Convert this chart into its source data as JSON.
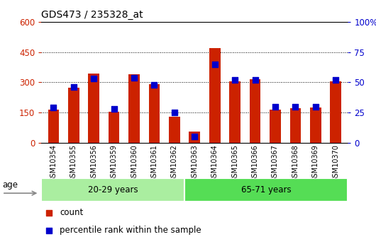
{
  "title": "GDS473 / 235328_at",
  "samples": [
    "GSM10354",
    "GSM10355",
    "GSM10356",
    "GSM10359",
    "GSM10360",
    "GSM10361",
    "GSM10362",
    "GSM10363",
    "GSM10364",
    "GSM10365",
    "GSM10366",
    "GSM10367",
    "GSM10368",
    "GSM10369",
    "GSM10370"
  ],
  "counts": [
    165,
    275,
    345,
    155,
    340,
    290,
    130,
    55,
    470,
    305,
    315,
    165,
    170,
    175,
    305
  ],
  "percentiles": [
    29,
    46,
    53,
    28,
    54,
    48,
    25,
    5,
    65,
    52,
    52,
    30,
    30,
    30,
    52
  ],
  "group1_label": "20-29 years",
  "group2_label": "65-71 years",
  "group1_count": 7,
  "group2_count": 8,
  "bar_color": "#CC2200",
  "dot_color": "#0000CC",
  "group1_color": "#AAEEA0",
  "group2_color": "#55DD55",
  "age_label": "age",
  "ylim_left": [
    0,
    600
  ],
  "ylim_right": [
    0,
    100
  ],
  "yticks_left": [
    0,
    150,
    300,
    450,
    600
  ],
  "yticks_right": [
    0,
    25,
    50,
    75,
    100
  ],
  "legend_count": "count",
  "legend_pct": "percentile rank within the sample",
  "bg_xtick": "#CCCCCC"
}
